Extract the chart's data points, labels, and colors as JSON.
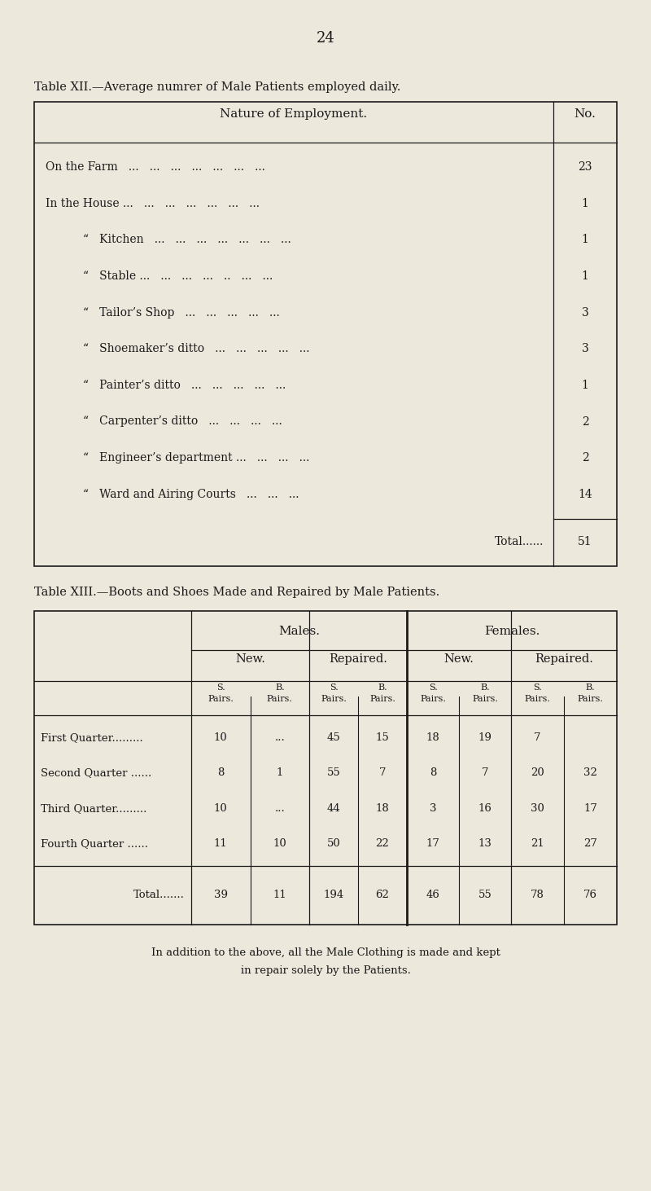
{
  "page_number": "24",
  "bg_color": "#ede8dc",
  "text_color": "#1a1a1a",
  "table12_title_parts": [
    {
      "text": "T",
      "style": "normal"
    },
    {
      "text": "able ",
      "style": "small"
    },
    {
      "text": "XII.",
      "style": "normal"
    },
    {
      "text": "—A",
      "style": "normal"
    },
    {
      "text": "verage numrer of ",
      "style": "small"
    },
    {
      "text": "M",
      "style": "normal"
    },
    {
      "text": "ale ",
      "style": "small"
    },
    {
      "text": "P",
      "style": "normal"
    },
    {
      "text": "atients employed daily.",
      "style": "small"
    }
  ],
  "table12_title_str": "Table XII.—Average numrer of Male Patients employed daily.",
  "table12_col1_header": "Nature of Employment.",
  "table12_col2_header": "No.",
  "table12_rows": [
    [
      "On the Farm   ...   ...   ...   ...   ...   ...   ...",
      "23",
      false
    ],
    [
      "In the House ...   ...   ...   ...   ...   ...   ...",
      "1",
      false
    ],
    [
      "\"   Kitchen   ...   ...   ...   ...   ...   ...   ...",
      "1",
      true
    ],
    [
      "\"   Stable ...   ...   ...   ...   ..   ...   ...",
      "1",
      true
    ],
    [
      "\"   Tailor’s Shop   ...   ...   ...   ...   ...",
      "3",
      true
    ],
    [
      "\"   Shoemaker’s ditto   ...   ...   ...   ...   ...",
      "3",
      true
    ],
    [
      "\"   Painter’s ditto   ...   ...   ...   ...   ...",
      "1",
      true
    ],
    [
      "\"   Carpenter’s ditto   ...   ...   ...   ...",
      "2",
      true
    ],
    [
      "\"   Engineer’s department ...   ...   ...   ...",
      "2",
      true
    ],
    [
      "\"   Ward and Airing Courts   ...   ...   ...",
      "14",
      true
    ]
  ],
  "table12_total_label": "Total......",
  "table12_total_value": "51",
  "table13_title_str": "Table XIII.—Boots and Shoes Made and Repaired by Male Patients.",
  "table13_males_header": "Males.",
  "table13_females_header": "Females.",
  "table13_new_header": "New.",
  "table13_repaired_header": "Repaired.",
  "table13_rows": [
    [
      "First Quarter.........",
      "10",
      "...",
      "45",
      "15",
      "18",
      "19",
      "7",
      ""
    ],
    [
      "Second Quarter ......",
      "8",
      "1",
      "55",
      "7",
      "8",
      "7",
      "20",
      "32"
    ],
    [
      "Third Quarter.........",
      "10",
      "...",
      "44",
      "18",
      "3",
      "16",
      "30",
      "17"
    ],
    [
      "Fourth Quarter ......",
      "11",
      "10",
      "50",
      "22",
      "17",
      "13",
      "21",
      "27"
    ]
  ],
  "table13_total_row": [
    "Total.......",
    "39",
    "11",
    "194",
    "62",
    "46",
    "55",
    "78",
    "76"
  ],
  "footer_line1": "In addition to the above, all the Male Clothing is made and kept",
  "footer_line2": "in repair solely by the Patients."
}
